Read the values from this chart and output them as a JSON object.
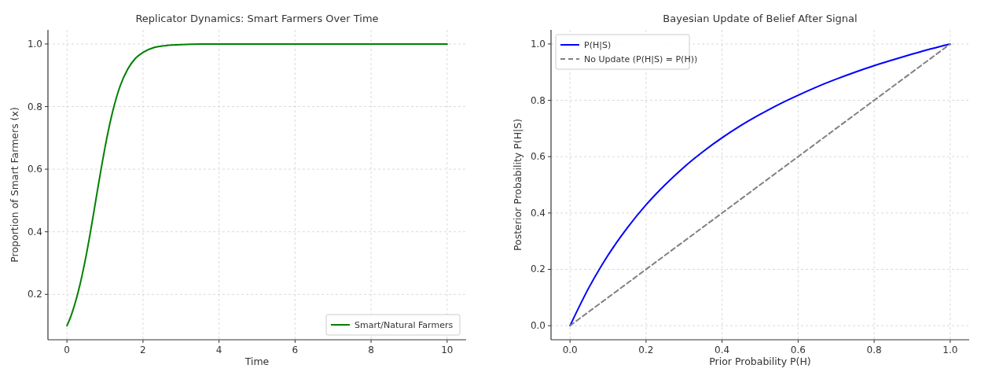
{
  "chart_data": [
    {
      "type": "line",
      "title": "Replicator Dynamics: Smart Farmers Over Time",
      "xlabel": "Time",
      "ylabel": "Proportion of Smart Farmers (x)",
      "xlim": [
        -0.5,
        10.5
      ],
      "ylim": [
        0.055,
        1.045
      ],
      "xticks": [
        0,
        2,
        4,
        6,
        8,
        10
      ],
      "yticks": [
        {
          "value": 0.2,
          "label": "0.2"
        },
        {
          "value": 0.4,
          "label": "0.4"
        },
        {
          "value": 0.6,
          "label": "0.6"
        },
        {
          "value": 0.8,
          "label": "0.8"
        },
        {
          "value": 1,
          "label": "1.0"
        }
      ],
      "grid": true,
      "legend": "bottom right",
      "series": [
        {
          "name": "Smart/Natural Farmers",
          "color": "#008000",
          "line_style": "solid",
          "x": [
            0,
            0.1,
            0.2,
            0.3,
            0.4,
            0.5,
            0.6,
            0.7,
            0.8,
            0.9,
            1,
            1.2,
            1.4,
            1.6,
            1.8,
            2,
            2.3,
            2.6,
            3,
            4,
            10
          ],
          "values": [
            0.1,
            0.129,
            0.166,
            0.21,
            0.262,
            0.321,
            0.387,
            0.458,
            0.531,
            0.602,
            0.669,
            0.783,
            0.866,
            0.92,
            0.954,
            0.973,
            0.989,
            0.995,
            0.998,
            1,
            1
          ]
        }
      ]
    },
    {
      "type": "line",
      "title": "Bayesian Update of Belief After Signal",
      "xlabel": "Prior Probability P(H)",
      "ylabel": "Posterior Probability P(H|S)",
      "xlim": [
        -0.05,
        1.05
      ],
      "ylim": [
        -0.05,
        1.05
      ],
      "xticks": [
        {
          "value": 0,
          "label": "0.0"
        },
        {
          "value": 0.2,
          "label": "0.2"
        },
        {
          "value": 0.4,
          "label": "0.4"
        },
        {
          "value": 0.6,
          "label": "0.6"
        },
        {
          "value": 0.8,
          "label": "0.8"
        },
        {
          "value": 1,
          "label": "1.0"
        }
      ],
      "yticks": [
        {
          "value": 0,
          "label": "0.0"
        },
        {
          "value": 0.2,
          "label": "0.2"
        },
        {
          "value": 0.4,
          "label": "0.4"
        },
        {
          "value": 0.6,
          "label": "0.6"
        },
        {
          "value": 0.8,
          "label": "0.8"
        },
        {
          "value": 1,
          "label": "1.0"
        }
      ],
      "grid": true,
      "legend": "top left",
      "series": [
        {
          "name": "P(H|S)",
          "color": "#0000ff",
          "line_style": "solid",
          "x": [
            0,
            0.05,
            0.1,
            0.15,
            0.2,
            0.25,
            0.3,
            0.35,
            0.4,
            0.45,
            0.5,
            0.55,
            0.6,
            0.65,
            0.7,
            0.75,
            0.8,
            0.85,
            0.9,
            0.95,
            1
          ],
          "values": [
            0,
            0.136,
            0.25,
            0.346,
            0.429,
            0.5,
            0.563,
            0.618,
            0.667,
            0.711,
            0.75,
            0.786,
            0.818,
            0.848,
            0.875,
            0.9,
            0.923,
            0.944,
            0.964,
            0.983,
            1
          ]
        },
        {
          "name": "No Update (P(H|S) = P(H))",
          "color": "#808080",
          "line_style": "dashed",
          "x": [
            0,
            1
          ],
          "values": [
            0,
            1
          ]
        }
      ]
    }
  ]
}
